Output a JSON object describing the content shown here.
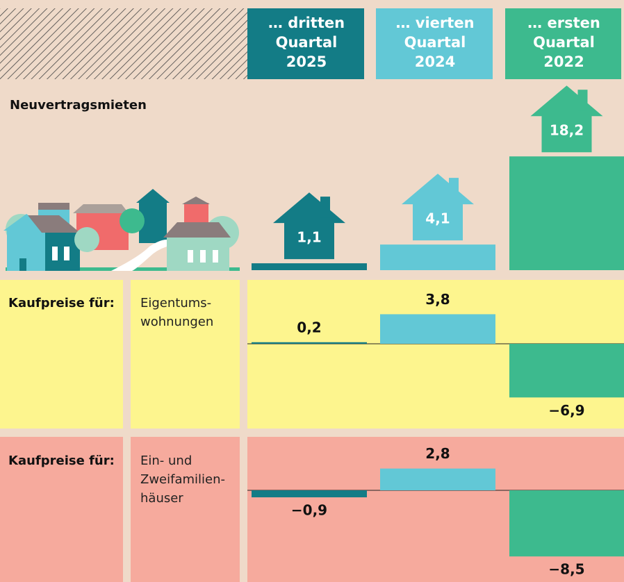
{
  "columns": [
    {
      "label": [
        "… dritten",
        "Quartal",
        "2025"
      ],
      "color": "#137c86"
    },
    {
      "label": [
        "… vierten",
        "Quartal",
        "2024"
      ],
      "color": "#62c8d6"
    },
    {
      "label": [
        "… ersten",
        "Quartal",
        "2022"
      ],
      "color": "#3dba8e"
    }
  ],
  "rows": [
    {
      "title": "Neuvertragsmieten",
      "values": [
        1.1,
        4.1,
        18.2
      ],
      "value_labels": [
        "1,1",
        "4,1",
        "18,2"
      ]
    },
    {
      "title": "Kaufpreise für:",
      "subtitle": [
        "Eigentums-",
        "wohnungen"
      ],
      "values": [
        0.2,
        3.8,
        -6.9
      ],
      "value_labels": [
        "0,2",
        "3,8",
        "−6,9"
      ]
    },
    {
      "title": "Kaufpreise für:",
      "subtitle": [
        "Ein- und",
        "Zweifamilien-",
        "häuser"
      ],
      "values": [
        -0.9,
        2.8,
        -8.5
      ],
      "value_labels": [
        "−0,9",
        "2,8",
        "−8,5"
      ]
    }
  ]
}
